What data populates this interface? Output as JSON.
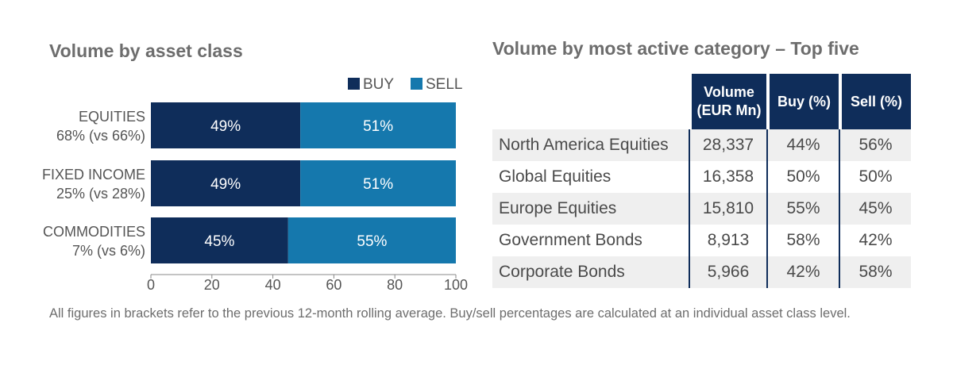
{
  "left_title": "Volume by asset class",
  "right_title": "Volume by most active category – Top five",
  "chart_data": {
    "type": "bar",
    "orientation": "horizontal",
    "stacked": true,
    "categories": [
      [
        "EQUITIES",
        "68% (vs 66%)"
      ],
      [
        "FIXED INCOME",
        "25% (vs 28%)"
      ],
      [
        "COMMODITIES",
        "7% (vs 6%)"
      ]
    ],
    "series": [
      {
        "name": "BUY",
        "color": "#0f2d5a",
        "values": [
          49,
          49,
          45
        ],
        "labels": [
          "49%",
          "49%",
          "45%"
        ]
      },
      {
        "name": "SELL",
        "color": "#1578ad",
        "values": [
          51,
          51,
          55
        ],
        "labels": [
          "51%",
          "51%",
          "55%"
        ]
      }
    ],
    "xlim": [
      0,
      100
    ],
    "xticks": [
      "0",
      "20",
      "40",
      "60",
      "80",
      "100"
    ],
    "legend_position": "top-right",
    "grid": false
  },
  "table": {
    "headers": [
      [
        "Volume",
        "(EUR Mn)"
      ],
      [
        "Buy (%)"
      ],
      [
        "Sell (%)"
      ]
    ],
    "rows": [
      [
        "North America Equities",
        "28,337",
        "44%",
        "56%"
      ],
      [
        "Global Equities",
        "16,358",
        "50%",
        "50%"
      ],
      [
        "Europe Equities",
        "15,810",
        "55%",
        "45%"
      ],
      [
        "Government Bonds",
        "8,913",
        "58%",
        "42%"
      ],
      [
        "Corporate Bonds",
        "5,966",
        "42%",
        "58%"
      ]
    ]
  },
  "footnote": "All figures in brackets refer to the previous 12-month rolling average. Buy/sell percentages are calculated at an individual asset class level."
}
